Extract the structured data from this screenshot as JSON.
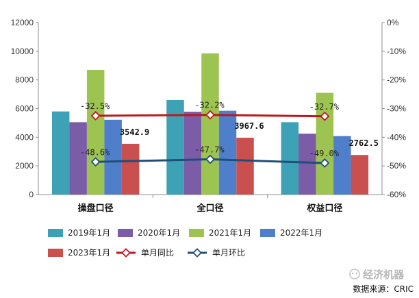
{
  "chart_data": {
    "type": "bar",
    "categories": [
      "操盘口径",
      "全口径",
      "权益口径"
    ],
    "series": [
      {
        "name": "2019年1月",
        "color": "#3ea2b6",
        "values": [
          5800,
          6600,
          5050
        ]
      },
      {
        "name": "2020年1月",
        "color": "#7b5ca6",
        "values": [
          5050,
          5780,
          4250
        ]
      },
      {
        "name": "2021年1月",
        "color": "#9dc451",
        "values": [
          8700,
          9850,
          7100
        ]
      },
      {
        "name": "2022年1月",
        "color": "#4f7fcb",
        "values": [
          5220,
          5850,
          4080
        ]
      },
      {
        "name": "2023年1月",
        "color": "#c9504f",
        "values": [
          3542.9,
          3967.6,
          2762.5
        ]
      }
    ],
    "value_labels": [
      "3542.9",
      "3967.6",
      "2762.5"
    ],
    "line_series": [
      {
        "name": "单月同比",
        "color": "#c0161c",
        "values": [
          -32.5,
          -32.2,
          -32.7
        ],
        "labels": [
          "-32.5%",
          "-32.2%",
          "-32.7%"
        ]
      },
      {
        "name": "单月环比",
        "color": "#1f4e79",
        "values": [
          -48.6,
          -47.7,
          -49.0
        ],
        "labels": [
          "-48.6%",
          "-47.7%",
          "-49.0%"
        ]
      }
    ],
    "y_left": {
      "min": 0,
      "max": 12000,
      "ticks": [
        "0",
        "2000",
        "4000",
        "6000",
        "8000",
        "10000",
        "12000"
      ]
    },
    "y_right": {
      "min": -60,
      "max": 0,
      "ticks": [
        "0%",
        "-10%",
        "-20%",
        "-30%",
        "-40%",
        "-50%",
        "-60%"
      ]
    },
    "legend_position": "bottom",
    "grid": false
  },
  "watermark": "经济机器",
  "source": "数据来源：CRIC"
}
